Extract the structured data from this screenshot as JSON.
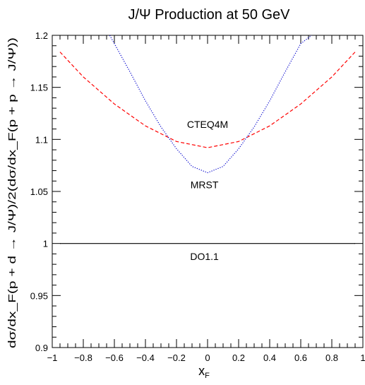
{
  "chart_data": {
    "type": "line",
    "title": "J/Ψ Production at 50 GeV",
    "xlabel_main": "x",
    "xlabel_sub": "F",
    "ylabel": "dσ/dx_F(p + d → J/Ψ)/2(dσ/dx_F(p + p → J/Ψ))",
    "xlim": [
      -1,
      1
    ],
    "ylim": [
      0.9,
      1.2
    ],
    "x_ticks": [
      -1,
      -0.8,
      -0.6,
      -0.4,
      -0.2,
      0,
      0.2,
      0.4,
      0.6,
      0.8,
      1
    ],
    "x_tick_labels": [
      "−1",
      "−0.8",
      "−0.6",
      "−0.4",
      "−0.2",
      "0",
      "0.2",
      "0.4",
      "0.6",
      "0.8",
      "1"
    ],
    "y_ticks": [
      0.9,
      0.95,
      1.0,
      1.05,
      1.1,
      1.15,
      1.2
    ],
    "y_tick_labels": [
      "0.9",
      "0.95",
      "1",
      "1.05",
      "1.1",
      "1.15",
      "1.2"
    ],
    "grid": false,
    "legend": "none",
    "series": [
      {
        "name": "CTEQ4M",
        "color": "#ff0000",
        "style": "dashed",
        "x": [
          -0.95,
          -0.8,
          -0.6,
          -0.4,
          -0.2,
          0,
          0.2,
          0.4,
          0.6,
          0.8,
          0.95
        ],
        "y": [
          1.184,
          1.16,
          1.134,
          1.113,
          1.098,
          1.092,
          1.098,
          1.113,
          1.134,
          1.16,
          1.184
        ]
      },
      {
        "name": "MRST",
        "color": "#0000cc",
        "style": "dotted",
        "x": [
          -0.63,
          -0.6,
          -0.5,
          -0.4,
          -0.3,
          -0.2,
          -0.1,
          0,
          0.1,
          0.2,
          0.3,
          0.4,
          0.5,
          0.6,
          0.67
        ],
        "y": [
          1.2,
          1.192,
          1.165,
          1.137,
          1.112,
          1.091,
          1.074,
          1.068,
          1.074,
          1.091,
          1.112,
          1.137,
          1.165,
          1.192,
          1.2
        ]
      },
      {
        "name": "DO1.1",
        "color": "#000000",
        "style": "solid",
        "x": [
          -0.95,
          0.95
        ],
        "y": [
          1.0,
          1.0
        ]
      }
    ],
    "annotations": [
      {
        "text": "CTEQ4M",
        "x": 0.0,
        "y": 1.111
      },
      {
        "text": "MRST",
        "x": -0.02,
        "y": 1.053
      },
      {
        "text": "DO1.1",
        "x": -0.02,
        "y": 0.984
      }
    ]
  }
}
